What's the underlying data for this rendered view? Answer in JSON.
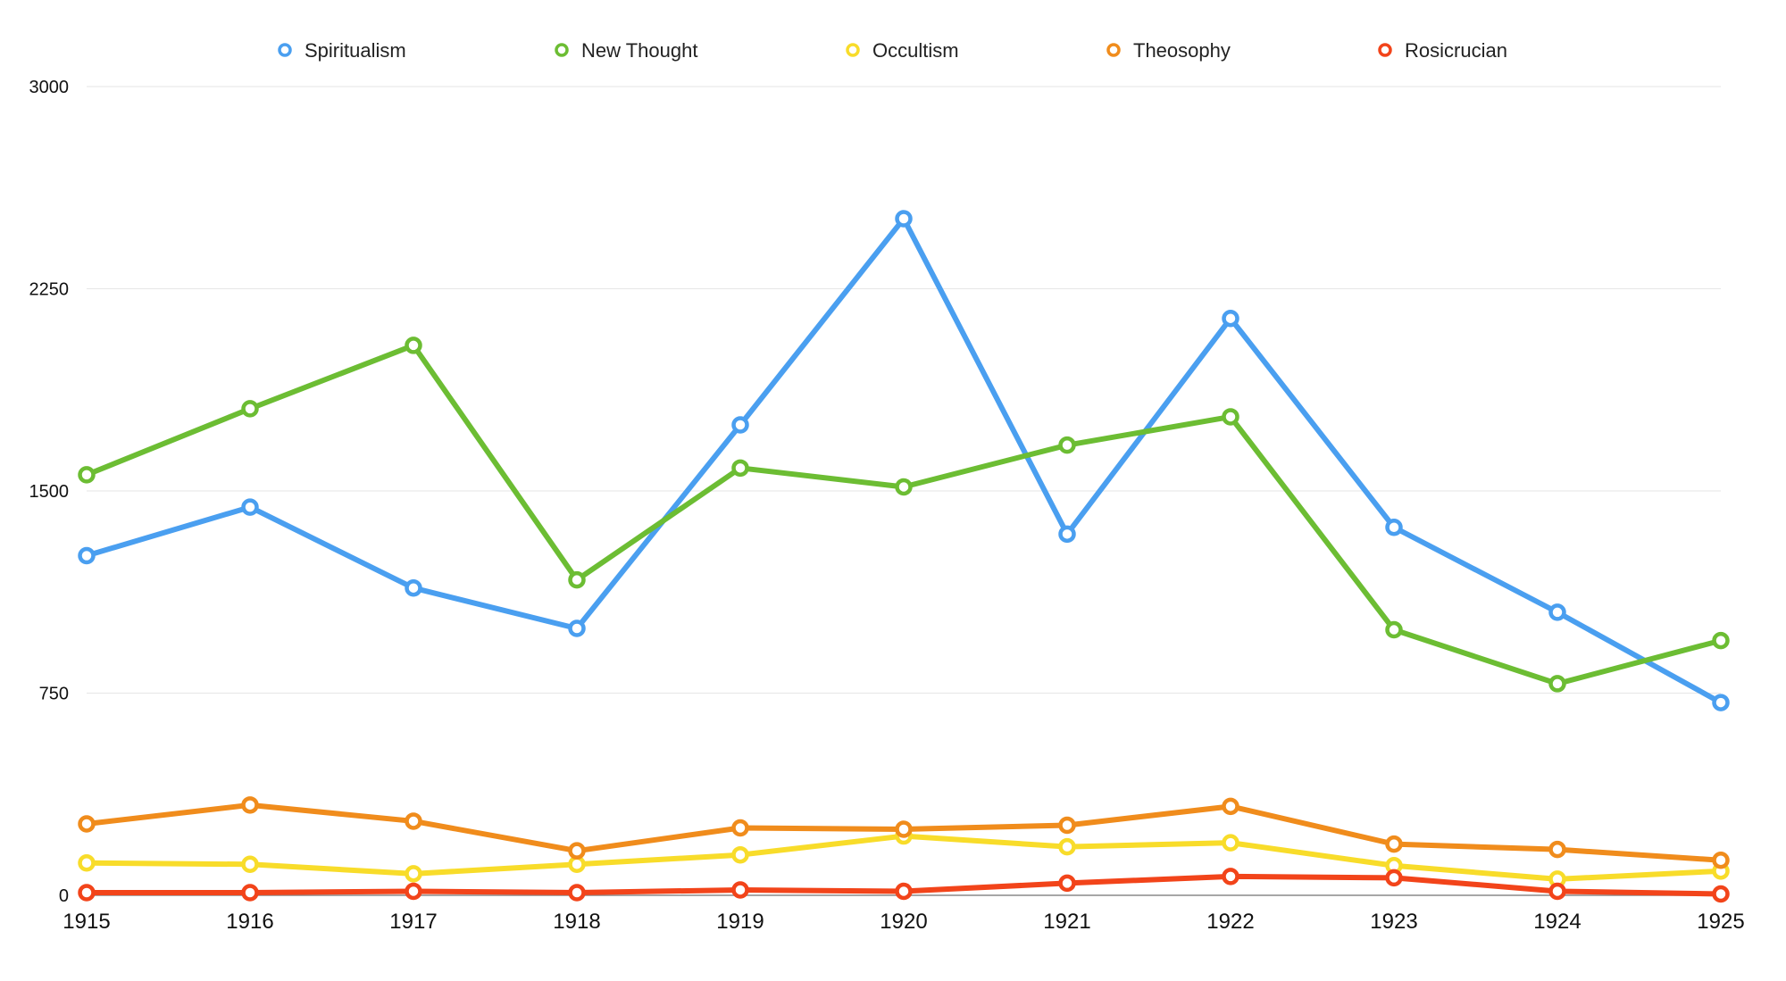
{
  "chart_data": {
    "type": "line",
    "x": [
      "1915",
      "1916",
      "1917",
      "1918",
      "1919",
      "1920",
      "1921",
      "1922",
      "1923",
      "1924",
      "1925"
    ],
    "ylim": [
      0,
      3000
    ],
    "yticks": [
      "0",
      "750",
      "1500",
      "2250",
      "3000"
    ],
    "grid": true,
    "legend_position": "top",
    "series": [
      {
        "name": "Spiritualism",
        "color": "#4a9ff0",
        "values": [
          1260,
          1440,
          1140,
          990,
          1745,
          2510,
          1340,
          2140,
          1365,
          1050,
          715
        ]
      },
      {
        "name": "New Thought",
        "color": "#6cbd33",
        "values": [
          1560,
          1805,
          2040,
          1170,
          1585,
          1515,
          1670,
          1775,
          985,
          785,
          945
        ]
      },
      {
        "name": "Occultism",
        "color": "#f8dc2a",
        "values": [
          120,
          115,
          80,
          115,
          150,
          220,
          180,
          195,
          110,
          60,
          90
        ]
      },
      {
        "name": "Theosophy",
        "color": "#f08c1c",
        "values": [
          265,
          335,
          275,
          165,
          250,
          245,
          260,
          330,
          190,
          170,
          130
        ]
      },
      {
        "name": "Rosicrucian",
        "color": "#f2441a",
        "values": [
          10,
          10,
          15,
          10,
          20,
          15,
          45,
          70,
          65,
          15,
          5
        ]
      }
    ]
  }
}
